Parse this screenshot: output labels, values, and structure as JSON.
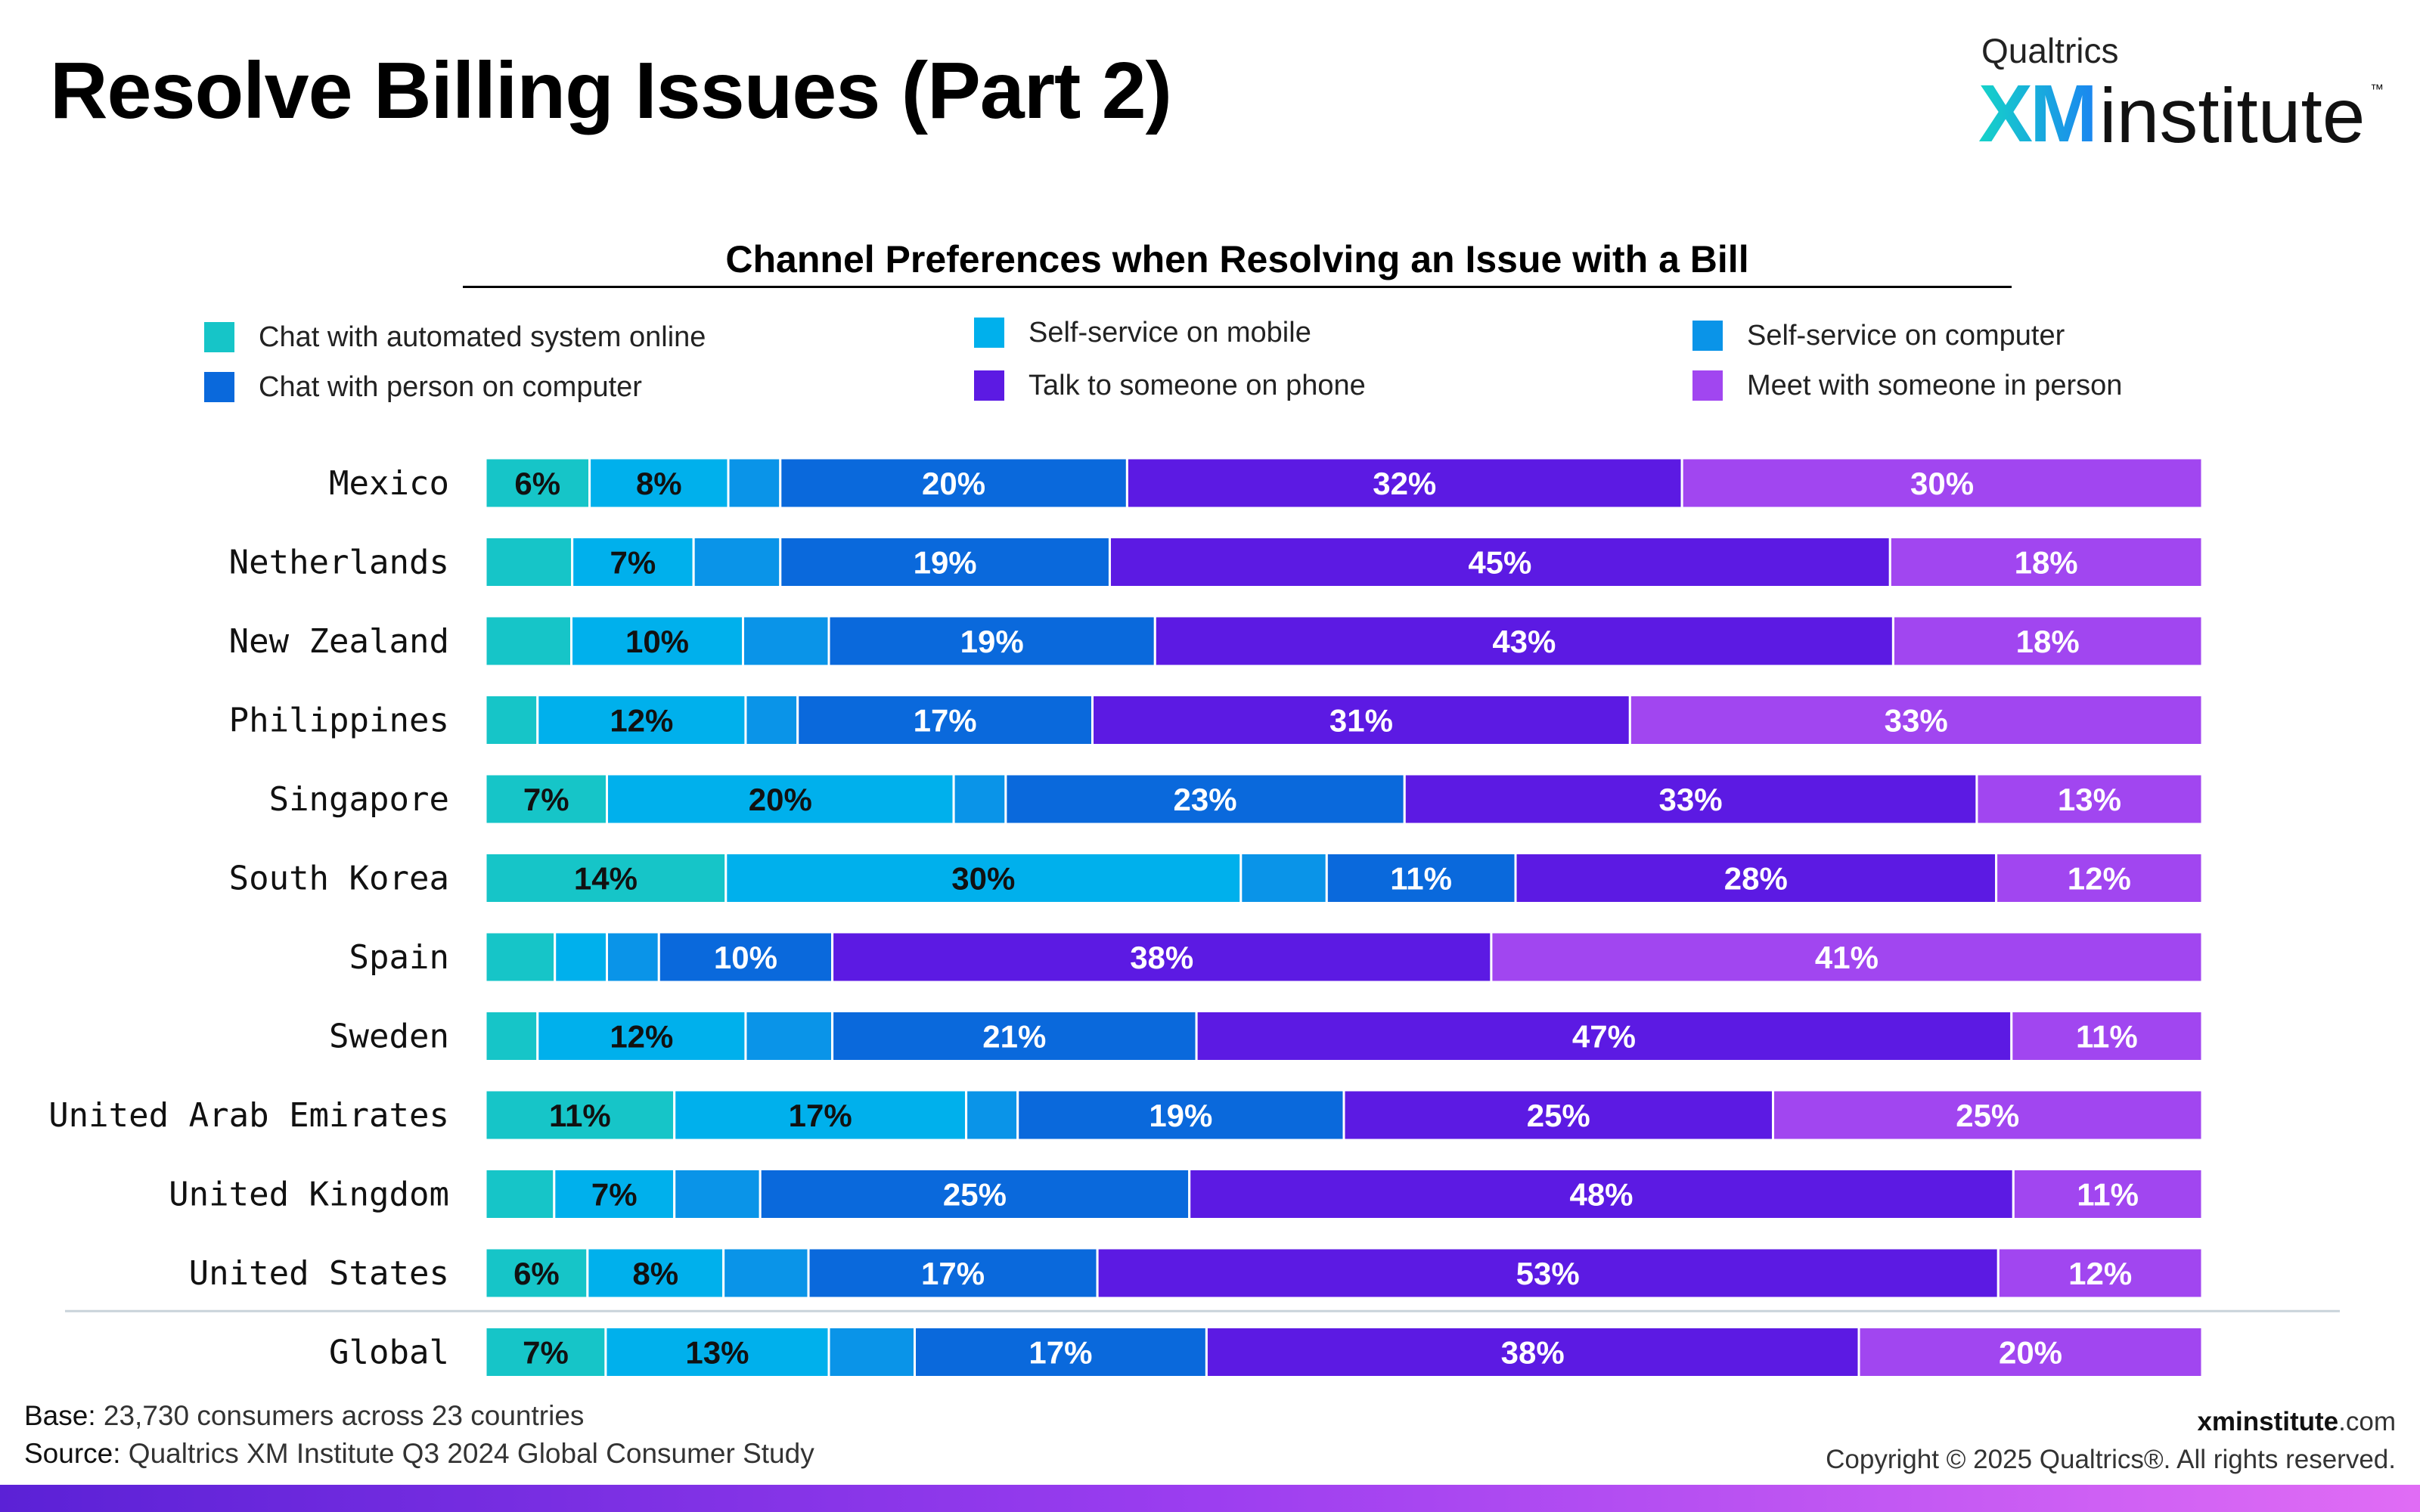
{
  "page_title": "Resolve Billing Issues (Part 2)",
  "logo": {
    "brand": "Qualtrics",
    "mark": "XM",
    "word": "institute",
    "tm": "™"
  },
  "footer": {
    "base_label": "Base:",
    "base_text": " 23,730 consumers across 23 countries",
    "source_label": "Source:",
    "source_text": " Qualtrics XM Institute Q3 2024 Global Consumer Study",
    "site_bold": "xminstitute",
    "site_rest": ".com",
    "copyright": "Copyright © 2025 Qualtrics®. All rights reserved."
  },
  "chart_data": {
    "type": "bar",
    "orientation": "horizontal",
    "stacked": true,
    "normalized": true,
    "title": "Channel Preferences when Resolving an Issue with a Bill",
    "legend_position": "top",
    "grid": false,
    "xlim": [
      0,
      100
    ],
    "categories": [
      "Mexico",
      "Netherlands",
      "New Zealand",
      "Philippines",
      "Singapore",
      "South Korea",
      "Spain",
      "Sweden",
      "United Arab Emirates",
      "United Kingdom",
      "United States",
      "Global"
    ],
    "separator_before": "Global",
    "series": [
      {
        "name": "Chat with automated system online",
        "color": "#16c5c8",
        "label_color": "#111111",
        "values": [
          6,
          5,
          5,
          3,
          7,
          14,
          4,
          3,
          11,
          4,
          6,
          7
        ],
        "labels": [
          "6%",
          "",
          "",
          "",
          "7%",
          "14%",
          "",
          "",
          "11%",
          "",
          "6%",
          "7%"
        ]
      },
      {
        "name": "Self-service on mobile",
        "color": "#00b0ec",
        "label_color": "#111111",
        "values": [
          8,
          7,
          10,
          12,
          20,
          30,
          3,
          12,
          17,
          7,
          8,
          13
        ],
        "labels": [
          "8%",
          "7%",
          "10%",
          "12%",
          "20%",
          "30%",
          "",
          "12%",
          "17%",
          "7%",
          "8%",
          "13%"
        ]
      },
      {
        "name": "Self-service on computer",
        "color": "#0a94e8",
        "label_color": "#111111",
        "values": [
          3,
          5,
          5,
          3,
          3,
          5,
          3,
          5,
          3,
          5,
          5,
          5
        ],
        "labels": [
          "",
          "",
          "",
          "",
          "",
          "",
          "",
          "",
          "",
          "",
          "",
          ""
        ]
      },
      {
        "name": "Chat with person on computer",
        "color": "#0a69dc",
        "label_color": "#ffffff",
        "values": [
          20,
          19,
          19,
          17,
          23,
          11,
          10,
          21,
          19,
          25,
          17,
          17
        ],
        "labels": [
          "20%",
          "19%",
          "19%",
          "17%",
          "23%",
          "11%",
          "10%",
          "21%",
          "19%",
          "25%",
          "17%",
          "17%"
        ]
      },
      {
        "name": "Talk to someone on phone",
        "color": "#5c1ae3",
        "label_color": "#ffffff",
        "values": [
          32,
          45,
          43,
          31,
          33,
          28,
          38,
          47,
          25,
          48,
          53,
          38
        ],
        "labels": [
          "32%",
          "45%",
          "43%",
          "31%",
          "33%",
          "28%",
          "38%",
          "47%",
          "25%",
          "48%",
          "53%",
          "38%"
        ]
      },
      {
        "name": "Meet with someone in person",
        "color": "#a146f0",
        "label_color": "#ffffff",
        "values": [
          30,
          18,
          18,
          33,
          13,
          12,
          41,
          11,
          25,
          11,
          12,
          20
        ],
        "labels": [
          "30%",
          "18%",
          "18%",
          "33%",
          "13%",
          "12%",
          "41%",
          "11%",
          "25%",
          "11%",
          "12%",
          "20%"
        ]
      }
    ]
  }
}
